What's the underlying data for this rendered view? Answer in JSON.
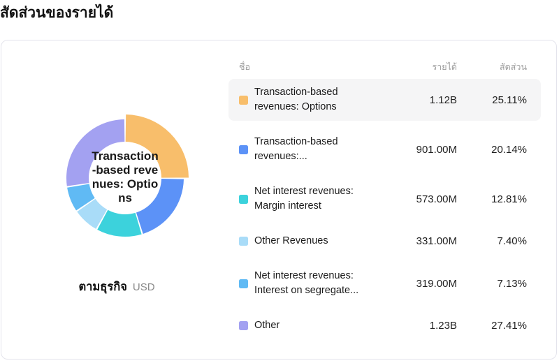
{
  "page": {
    "title": "สัดส่วนของรายได้"
  },
  "chart": {
    "center_label": "Transaction-based revenues: Options",
    "footer_label": "ตามธุรกิจ",
    "footer_unit": "USD"
  },
  "table": {
    "headers": {
      "name": "ชื่อ",
      "revenue": "รายได้",
      "share": "สัดส่วน"
    }
  },
  "chart_data": {
    "type": "pie",
    "donut": true,
    "title": "สัดส่วนของรายได้",
    "unit": "USD",
    "legend_position": "right",
    "highlighted_index": 0,
    "categories": [
      "Transaction-based revenues: Options",
      "Transaction-based revenues:...",
      "Net interest revenues: Margin interest",
      "Other Revenues",
      "Net interest revenues: Interest on segregate...",
      "Other"
    ],
    "values": [
      25.11,
      20.14,
      12.81,
      7.4,
      7.13,
      27.41
    ],
    "revenues": [
      "1.12B",
      "901.00M",
      "573.00M",
      "331.00M",
      "319.00M",
      "1.23B"
    ],
    "shares": [
      "25.11%",
      "20.14%",
      "12.81%",
      "7.40%",
      "7.13%",
      "27.41%"
    ],
    "colors": [
      "#F8BE6B",
      "#5C92F7",
      "#3CD2DC",
      "#A9DCF8",
      "#60BAF4",
      "#A3A1F1"
    ]
  }
}
